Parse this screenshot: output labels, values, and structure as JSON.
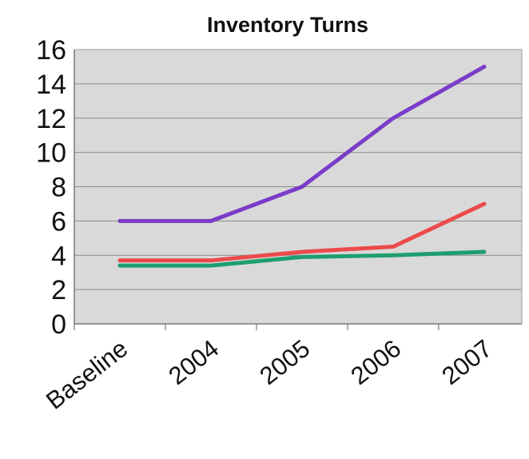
{
  "chart_data": {
    "type": "line",
    "title": "Inventory Turns",
    "xlabel": "",
    "ylabel": "",
    "categories": [
      "Baseline",
      "2004",
      "2005",
      "2006",
      "2007"
    ],
    "ylim": [
      0,
      16
    ],
    "yticks": [
      0,
      2,
      4,
      6,
      8,
      10,
      12,
      14,
      16
    ],
    "grid": true,
    "legend": "none",
    "plot_background": "#d9d9d9",
    "series": [
      {
        "color": "#7a3cc8",
        "values": [
          6,
          6,
          8,
          12,
          15
        ]
      },
      {
        "color": "#ec4a4a",
        "values": [
          3.7,
          3.7,
          4.2,
          4.5,
          7
        ]
      },
      {
        "color": "#1e9e6e",
        "values": [
          3.4,
          3.4,
          3.9,
          4.0,
          4.2
        ]
      }
    ]
  }
}
